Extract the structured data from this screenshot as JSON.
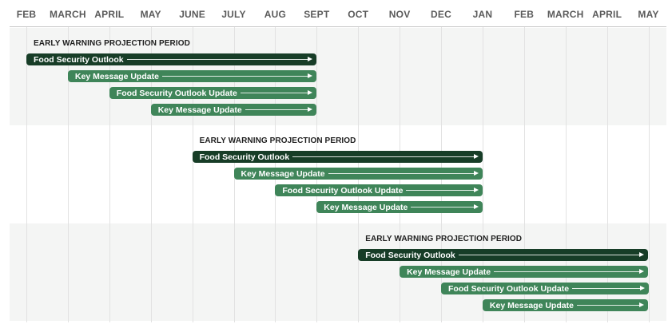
{
  "months": [
    "FEB",
    "MARCH",
    "APRIL",
    "MAY",
    "JUNE",
    "JULY",
    "AUG",
    "SEPT",
    "OCT",
    "NOV",
    "DEC",
    "JAN",
    "FEB",
    "MARCH",
    "APRIL",
    "MAY"
  ],
  "groups": [
    {
      "period_label": "EARLY WARNING PROJECTION PERIOD",
      "shaded": true,
      "bars": [
        {
          "label": "Food Security Outlook",
          "start": 0,
          "end": 7,
          "style": "dark"
        },
        {
          "label": "Key Message Update",
          "start": 1,
          "end": 7,
          "style": "light"
        },
        {
          "label": "Food Security Outlook Update",
          "start": 2,
          "end": 7,
          "style": "light"
        },
        {
          "label": "Key Message Update",
          "start": 3,
          "end": 7,
          "style": "light"
        }
      ]
    },
    {
      "period_label": "EARLY WARNING PROJECTION PERIOD",
      "shaded": false,
      "bars": [
        {
          "label": "Food Security Outlook",
          "start": 4,
          "end": 11,
          "style": "dark"
        },
        {
          "label": "Key Message Update",
          "start": 5,
          "end": 11,
          "style": "light"
        },
        {
          "label": "Food Security Outlook Update",
          "start": 6,
          "end": 11,
          "style": "light"
        },
        {
          "label": "Key Message Update",
          "start": 7,
          "end": 11,
          "style": "light"
        }
      ]
    },
    {
      "period_label": "EARLY WARNING PROJECTION PERIOD",
      "shaded": true,
      "bars": [
        {
          "label": "Food Security Outlook",
          "start": 8,
          "end": 15,
          "style": "dark"
        },
        {
          "label": "Key Message Update",
          "start": 9,
          "end": 15,
          "style": "light"
        },
        {
          "label": "Food Security Outlook Update",
          "start": 10,
          "end": 15,
          "style": "light"
        },
        {
          "label": "Key Message Update",
          "start": 11,
          "end": 15,
          "style": "light"
        }
      ]
    }
  ],
  "colors": {
    "dark_bar": "#173d27",
    "light_bar": "#3f8559",
    "band_shade": "#f4f5f4"
  }
}
